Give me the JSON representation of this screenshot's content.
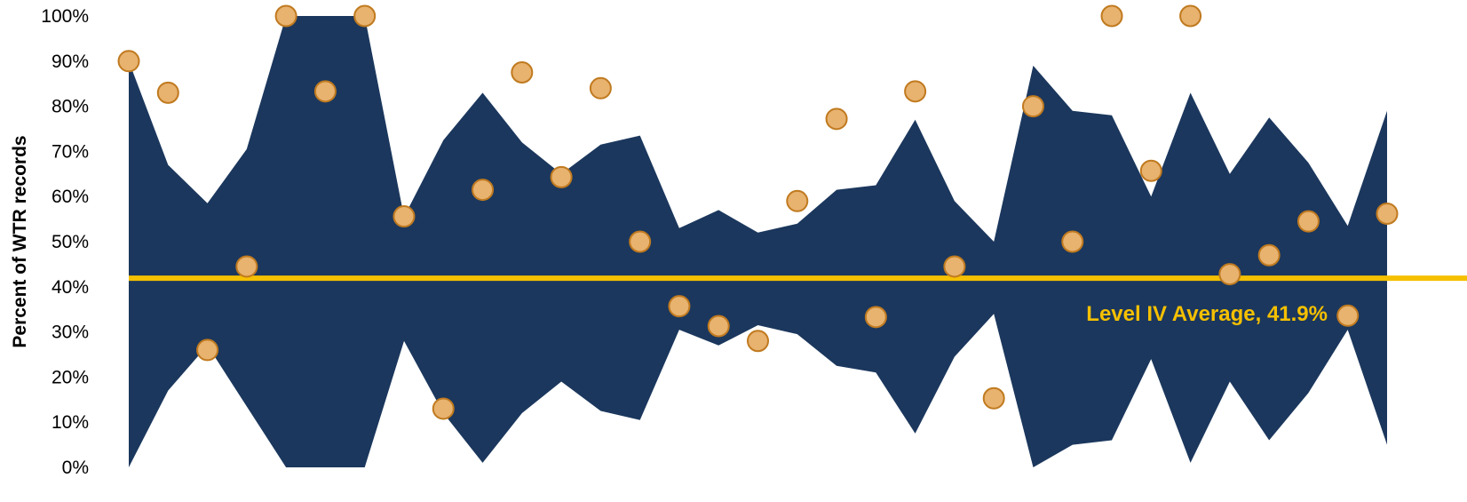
{
  "chart_data": {
    "type": "area",
    "ylabel": "Percent of WTR records",
    "xlabel": "",
    "ylim": [
      0,
      100
    ],
    "y_ticks": [
      0,
      10,
      20,
      30,
      40,
      50,
      60,
      70,
      80,
      90,
      100
    ],
    "tick_suffix": "%",
    "n_points": 33,
    "band": {
      "lower": [
        0,
        17,
        27,
        13.5,
        0,
        0,
        0,
        28,
        12,
        1,
        12,
        19,
        12.5,
        10.5,
        30.5,
        27,
        31.5,
        29.5,
        22.5,
        21,
        7.5,
        24.5,
        34,
        0,
        5,
        6,
        24,
        1,
        19,
        6,
        16.5,
        30.5,
        5
      ],
      "upper": [
        90,
        67,
        58.5,
        70.5,
        100,
        100,
        100,
        55.5,
        72.5,
        83,
        72,
        65,
        71.5,
        73.5,
        53,
        57,
        52,
        54,
        61.5,
        62.5,
        77,
        59,
        50,
        89,
        79,
        78,
        60,
        83,
        65,
        77.5,
        67.5,
        53.5,
        79
      ]
    },
    "points": [
      90,
      83,
      26,
      44.5,
      100,
      83.3,
      100,
      55.6,
      13,
      61.5,
      87.5,
      64.3,
      84,
      50,
      35.7,
      31.3,
      28,
      59,
      77.2,
      33.3,
      83.3,
      44.5,
      15.3,
      80,
      50,
      100,
      65.7,
      100,
      42.8,
      47,
      54.5,
      33.6,
      56.2
    ],
    "average": {
      "label": "Level IV Average, 41.9%",
      "value": 41.9
    },
    "colors": {
      "band": "#1b375d",
      "point_fill": "#e8b26f",
      "point_stroke": "#c07a1f",
      "average_line": "#f5c000",
      "average_text": "#f5c000"
    }
  }
}
